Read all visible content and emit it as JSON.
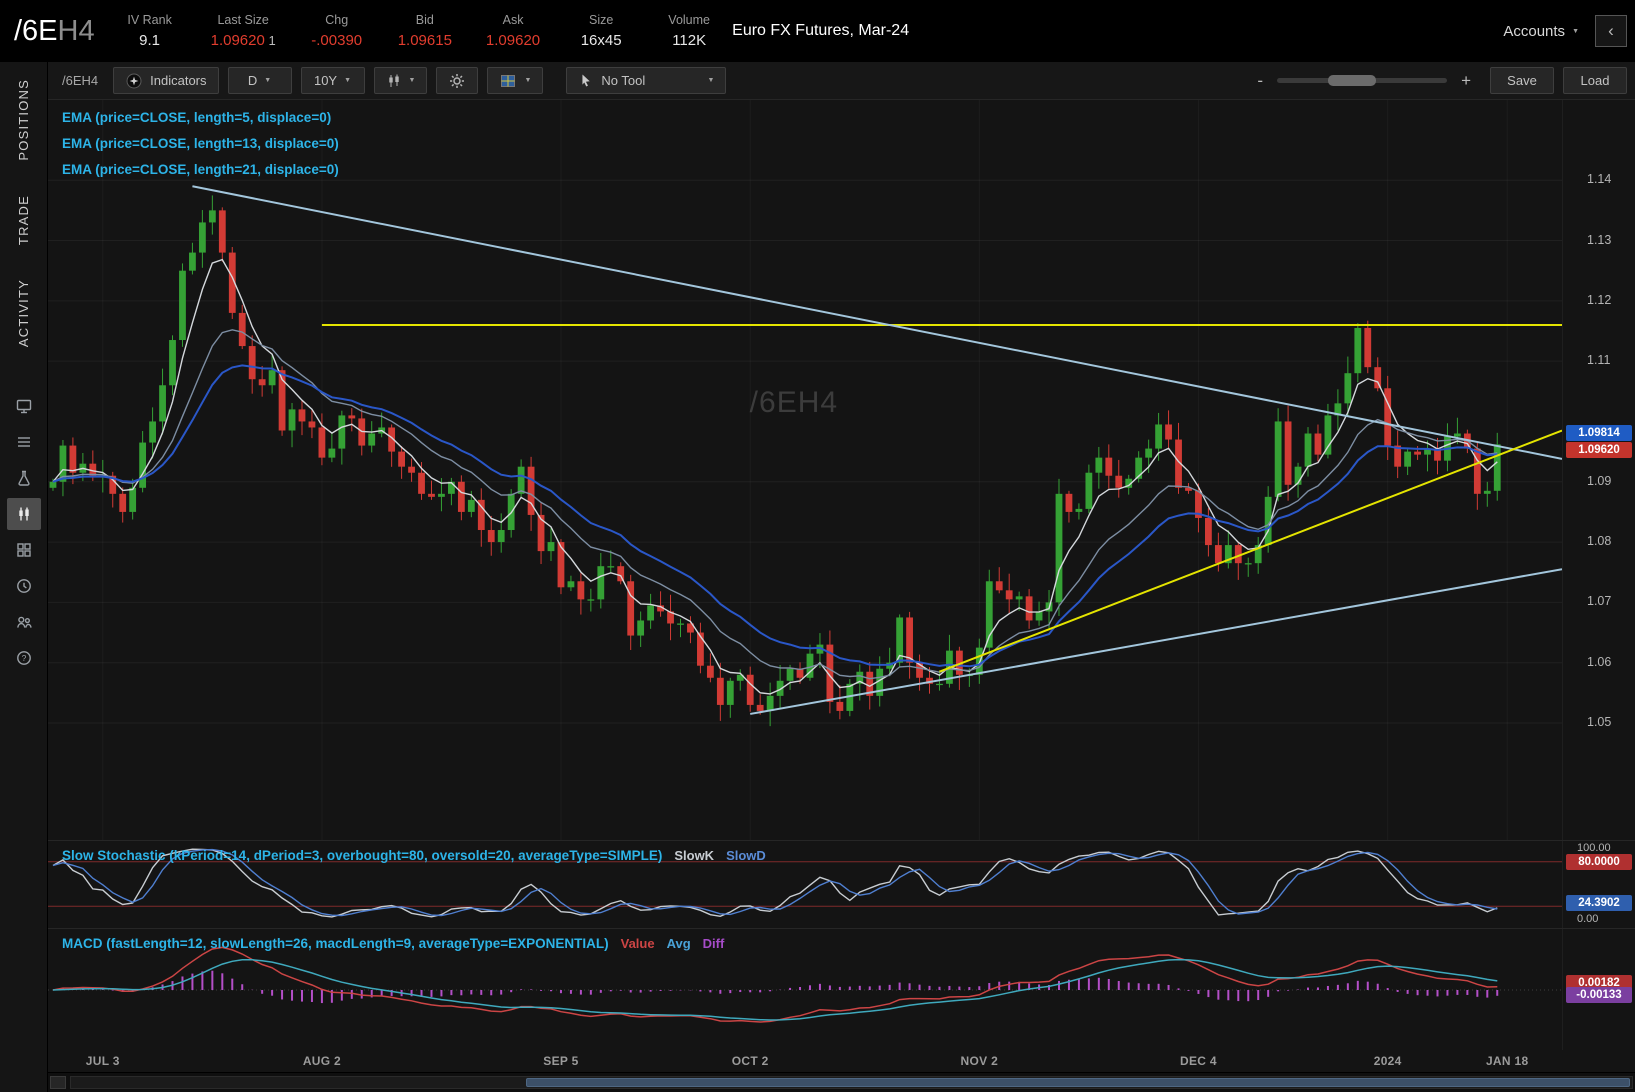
{
  "header": {
    "symbol_main": "/6E",
    "symbol_sub": "H4",
    "fields": [
      {
        "label": "IV Rank",
        "value": "9.1",
        "color": "neutral"
      },
      {
        "label": "Last Size",
        "value": "1.09620",
        "extra": "1",
        "color": "red"
      },
      {
        "label": "Chg",
        "value": "-.00390",
        "color": "red"
      },
      {
        "label": "Bid",
        "value": "1.09615",
        "color": "red"
      },
      {
        "label": "Ask",
        "value": "1.09620",
        "color": "red"
      },
      {
        "label": "Size",
        "value": "16x45",
        "color": "neutral"
      },
      {
        "label": "Volume",
        "value": "112K",
        "color": "neutral"
      }
    ],
    "description": "Euro FX Futures, Mar-24",
    "accounts_label": "Accounts",
    "collapse_glyph": "‹"
  },
  "sidebar": {
    "tabs": [
      {
        "label": "POSITIONS"
      },
      {
        "label": "TRADE"
      },
      {
        "label": "ACTIVITY"
      }
    ],
    "icons": [
      "monitor-icon",
      "list-icon",
      "flask-icon",
      "chart-icon",
      "apps-grid-icon",
      "clock-icon",
      "people-icon",
      "help-icon"
    ],
    "active_icon": "chart-icon"
  },
  "toolbar": {
    "symbol": "/6EH4",
    "indicators_label": "Indicators",
    "timeframe": "D",
    "range": "10Y",
    "tool_label": "No Tool",
    "zoom_minus": "-",
    "zoom_plus": "+",
    "save_label": "Save",
    "load_label": "Load",
    "icons": [
      "indicators-icon",
      "chart-type-icon",
      "gear-icon",
      "layout-grid-icon",
      "pointer-icon",
      "chevron-down-icon"
    ]
  },
  "chart": {
    "studies": [
      "EMA (price=CLOSE, length=5, displace=0)",
      "EMA (price=CLOSE, length=13, displace=0)",
      "EMA (price=CLOSE, length=21, displace=0)"
    ],
    "watermark": "/6EH4",
    "price_axis": {
      "ticks": [
        {
          "label": "1.14",
          "price": 1.14
        },
        {
          "label": "1.13",
          "price": 1.13
        },
        {
          "label": "1.12",
          "price": 1.12
        },
        {
          "label": "1.11",
          "price": 1.11
        },
        {
          "label": "1.09",
          "price": 1.09
        },
        {
          "label": "1.08",
          "price": 1.08
        },
        {
          "label": "1.07",
          "price": 1.07
        },
        {
          "label": "1.06",
          "price": 1.06
        },
        {
          "label": "1.05",
          "price": 1.05
        }
      ],
      "bubbles": [
        {
          "text": "1.09814",
          "price": 1.0981,
          "bg": "#1f5cc4"
        },
        {
          "text": "1.09620",
          "price": 1.0962,
          "bg": "#c3342c"
        }
      ]
    }
  },
  "stoch": {
    "label": "Slow Stochastic (kPeriod=14, dPeriod=3, overbought=80, oversold=20, averageType=SIMPLE)",
    "legend_k": "SlowK",
    "legend_d": "SlowD",
    "axis_top": "100.00",
    "axis_bottom": "0.00",
    "overbought": 80,
    "oversold": 20,
    "k_period": 14,
    "smooth": 3,
    "bubbles": [
      {
        "text": "80.0000",
        "value": 80,
        "bg": "#b03030"
      },
      {
        "text": "24.3902",
        "value": 24.39,
        "bg": "#2f5fae"
      }
    ]
  },
  "macd": {
    "label": "MACD (fastLength=12, slowLength=26, macdLength=9, averageType=EXPONENTIAL)",
    "legend_value": "Value",
    "legend_avg": "Avg",
    "legend_diff": "Diff",
    "fast": 12,
    "slow": 26,
    "signal": 9,
    "bubbles": [
      {
        "text": "0.00182",
        "value": 0.00182,
        "bg": "#b03030"
      },
      {
        "text": "-0.00133",
        "value": -0.00133,
        "bg": "#7b3fa0"
      }
    ]
  },
  "chart_data": {
    "type": "candlestick",
    "symbol": "/6EH4",
    "title": "Euro FX Futures, Mar-24",
    "timeframe": "Daily",
    "ylim": [
      1.0306,
      1.1533
    ],
    "total_slots": 152,
    "first_open": 1.089,
    "closes": [
      1.09,
      1.096,
      1.0915,
      1.093,
      1.091,
      1.091,
      1.088,
      1.085,
      1.089,
      1.0965,
      1.1,
      1.106,
      1.1135,
      1.125,
      1.128,
      1.133,
      1.135,
      1.128,
      1.118,
      1.1125,
      1.107,
      1.106,
      1.1085,
      1.0985,
      1.102,
      1.1,
      1.099,
      1.094,
      1.0955,
      1.101,
      1.1005,
      1.096,
      1.098,
      1.099,
      1.095,
      1.0925,
      1.0915,
      1.088,
      1.0875,
      1.088,
      1.09,
      1.085,
      1.087,
      1.082,
      1.08,
      1.082,
      1.088,
      1.0925,
      1.0845,
      1.0785,
      1.08,
      1.0725,
      1.0735,
      1.0705,
      1.0705,
      1.076,
      1.076,
      1.0735,
      1.0645,
      1.067,
      1.0695,
      1.0685,
      1.0665,
      1.0665,
      1.065,
      1.0595,
      1.0575,
      1.053,
      1.057,
      1.058,
      1.053,
      1.052,
      1.0545,
      1.057,
      1.059,
      1.0575,
      1.0615,
      1.063,
      1.0535,
      1.052,
      1.0565,
      1.0585,
      1.0545,
      1.059,
      1.06,
      1.0675,
      1.06,
      1.0575,
      1.0565,
      1.0565,
      1.062,
      1.058,
      1.058,
      1.0625,
      1.0735,
      1.072,
      1.0705,
      1.071,
      1.067,
      1.0685,
      1.07,
      1.088,
      1.085,
      1.0855,
      1.0915,
      1.094,
      1.091,
      1.089,
      1.0905,
      1.094,
      1.0955,
      1.0995,
      1.097,
      1.089,
      1.0885,
      1.084,
      1.0795,
      1.0765,
      1.0795,
      1.0765,
      1.0765,
      1.0795,
      1.0875,
      1.1,
      1.0895,
      1.0925,
      1.098,
      1.0945,
      1.101,
      1.103,
      1.108,
      1.1155,
      1.109,
      1.1055,
      1.096,
      1.0925,
      1.095,
      1.0945,
      1.0955,
      1.0935,
      1.0975,
      1.098,
      1.0955,
      1.088,
      1.0885,
      1.0962
    ],
    "ema_lengths": [
      5,
      13,
      21
    ],
    "ema_colors": [
      "#d4d8dc",
      "#7d8ea3",
      "#2a57c8"
    ],
    "up_color": "#35a135",
    "down_color": "#d23b35",
    "x_labels": [
      {
        "text": "JUL 3",
        "idx": 5
      },
      {
        "text": "AUG 2",
        "idx": 27
      },
      {
        "text": "SEP 5",
        "idx": 51
      },
      {
        "text": "OCT 2",
        "idx": 70
      },
      {
        "text": "NOV 2",
        "idx": 93
      },
      {
        "text": "DEC 4",
        "idx": 115
      },
      {
        "text": "2024",
        "idx": 134
      },
      {
        "text": "JAN 18",
        "idx": 146
      }
    ],
    "trendlines": [
      {
        "color": "#e4e400",
        "from": [
          27,
          1.116
        ],
        "to": [
          152,
          1.116
        ]
      },
      {
        "color": "#a3c6dc",
        "from": [
          14,
          1.139
        ],
        "to": [
          152,
          1.0938
        ]
      },
      {
        "color": "#a3c6dc",
        "from": [
          70,
          1.0515
        ],
        "to": [
          152,
          1.0755
        ]
      },
      {
        "color": "#e4e400",
        "from": [
          89,
          1.0585
        ],
        "to": [
          152,
          1.0985
        ]
      }
    ]
  }
}
